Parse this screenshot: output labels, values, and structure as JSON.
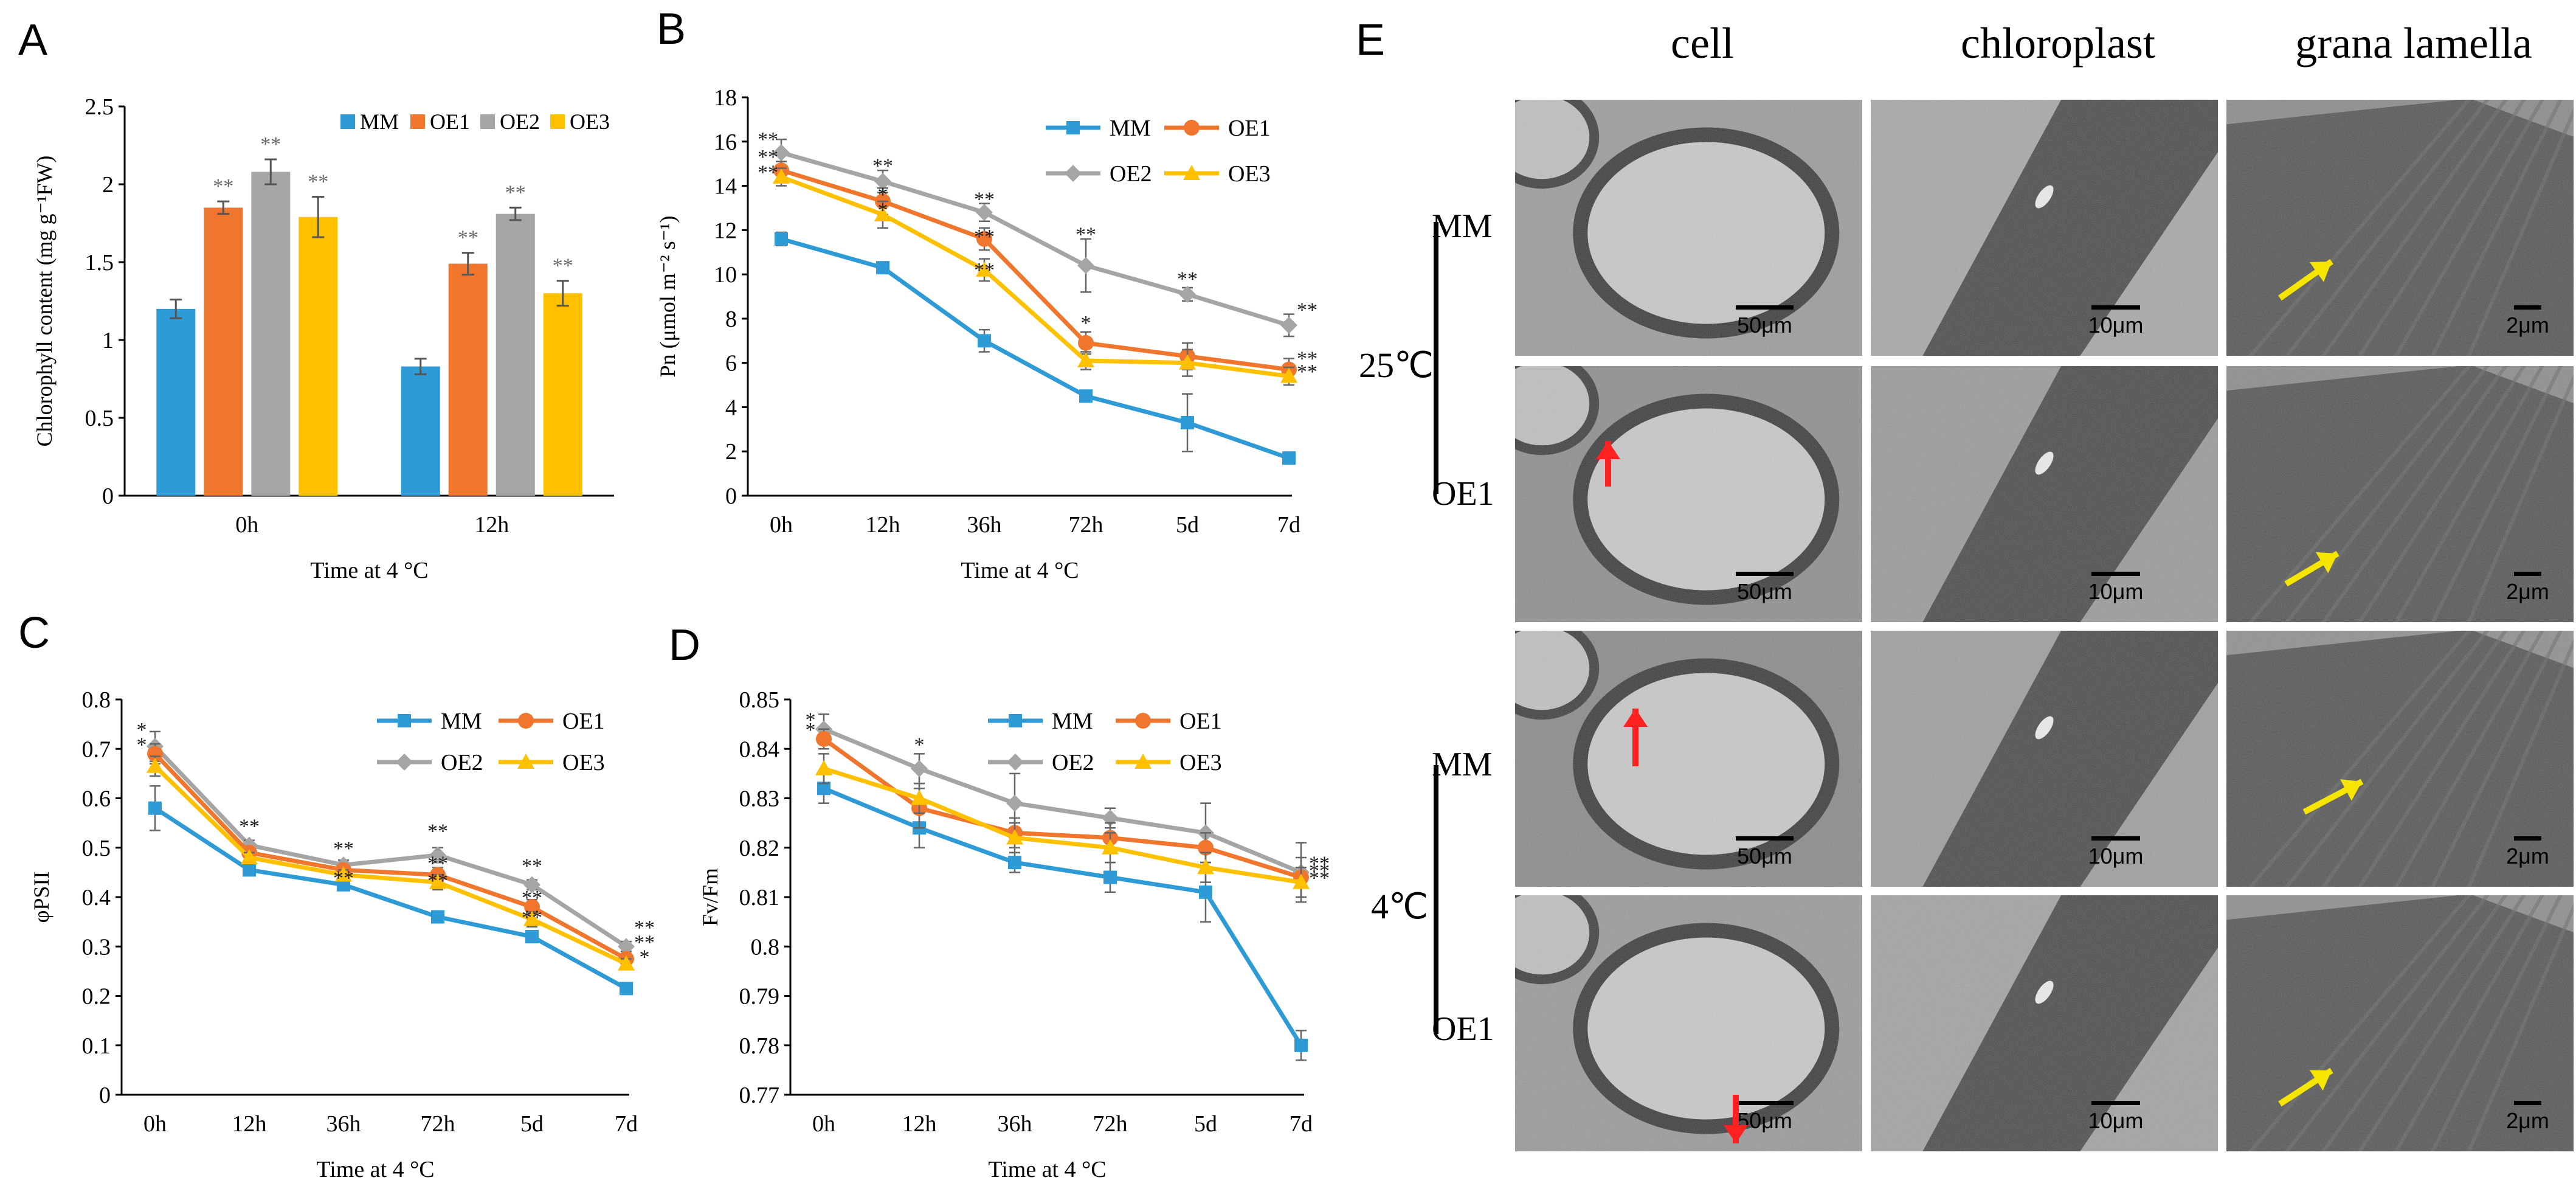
{
  "panel_labels": [
    "A",
    "B",
    "C",
    "D",
    "E"
  ],
  "colors": {
    "MM": "#2E9BD6",
    "OE1": "#F0762D",
    "OE2": "#A5A5A5",
    "OE3": "#FFC000"
  },
  "chart_data": [
    {
      "id": "A",
      "type": "bar",
      "categories": [
        "0h",
        "12h"
      ],
      "series": [
        {
          "name": "MM",
          "values": [
            1.2,
            0.83
          ],
          "errors": [
            0.06,
            0.05
          ],
          "sig": [
            "",
            ""
          ]
        },
        {
          "name": "OE1",
          "values": [
            1.85,
            1.49
          ],
          "errors": [
            0.04,
            0.07
          ],
          "sig": [
            "**",
            "**"
          ]
        },
        {
          "name": "OE2",
          "values": [
            2.08,
            1.81
          ],
          "errors": [
            0.08,
            0.04
          ],
          "sig": [
            "**",
            "**"
          ]
        },
        {
          "name": "OE3",
          "values": [
            1.79,
            1.3
          ],
          "errors": [
            0.13,
            0.08
          ],
          "sig": [
            "**",
            "**"
          ]
        }
      ],
      "ylabel": "Chlorophyll content (mg g⁻¹FW)",
      "xlabel": "Time at 4 °C",
      "ylim": [
        0,
        2.5
      ],
      "yticks": [
        "0",
        "0.5",
        "1",
        "1.5",
        "2",
        "2.5"
      ]
    },
    {
      "id": "B",
      "type": "line",
      "categories": [
        "0h",
        "12h",
        "36h",
        "72h",
        "5d",
        "7d"
      ],
      "series": [
        {
          "name": "MM",
          "values": [
            11.6,
            10.3,
            7.0,
            4.5,
            3.3,
            1.7
          ],
          "errors": [
            0.3,
            0.2,
            0.5,
            0.2,
            1.3,
            0.2
          ],
          "marker": "square"
        },
        {
          "name": "OE1",
          "values": [
            14.7,
            13.3,
            11.6,
            6.9,
            6.3,
            5.7
          ],
          "errors": [
            0.4,
            0.6,
            0.5,
            0.5,
            0.6,
            0.5
          ],
          "marker": "circle"
        },
        {
          "name": "OE2",
          "values": [
            15.5,
            14.2,
            12.8,
            10.4,
            9.1,
            7.7
          ],
          "errors": [
            0.6,
            0.5,
            0.4,
            1.2,
            0.3,
            0.5
          ],
          "marker": "diamond"
        },
        {
          "name": "OE3",
          "values": [
            14.4,
            12.7,
            10.2,
            6.1,
            6.0,
            5.4
          ],
          "errors": [
            0.4,
            0.6,
            0.5,
            0.4,
            0.6,
            0.4
          ],
          "marker": "triangle"
        }
      ],
      "sig": [
        {
          "x": 0,
          "y": 15.8,
          "text": "**"
        },
        {
          "x": 0,
          "y": 15.0,
          "text": "**"
        },
        {
          "x": 0,
          "y": 14.3,
          "text": "**"
        },
        {
          "x": 1,
          "y": 14.6,
          "text": "**"
        },
        {
          "x": 1,
          "y": 13.3,
          "text": "*"
        },
        {
          "x": 1,
          "y": 12.6,
          "text": "*"
        },
        {
          "x": 2,
          "y": 13.1,
          "text": "**"
        },
        {
          "x": 2,
          "y": 11.4,
          "text": "**"
        },
        {
          "x": 2,
          "y": 9.9,
          "text": "**"
        },
        {
          "x": 3,
          "y": 11.5,
          "text": "**"
        },
        {
          "x": 3,
          "y": 7.5,
          "text": "*"
        },
        {
          "x": 4,
          "y": 9.5,
          "text": "**"
        },
        {
          "x": 5,
          "y": 8.1,
          "text": "**"
        },
        {
          "x": 5,
          "y": 5.9,
          "text": "**"
        },
        {
          "x": 5,
          "y": 5.3,
          "text": "**"
        }
      ],
      "ylabel": "Pn (μmol m⁻² s⁻¹)",
      "xlabel": "Time at 4 °C",
      "ylim": [
        0,
        18
      ],
      "yticks": [
        "0",
        "2",
        "4",
        "6",
        "8",
        "10",
        "12",
        "14",
        "16",
        "18"
      ]
    },
    {
      "id": "C",
      "type": "line",
      "categories": [
        "0h",
        "12h",
        "36h",
        "72h",
        "5d",
        "7d"
      ],
      "series": [
        {
          "name": "MM",
          "values": [
            0.58,
            0.455,
            0.425,
            0.36,
            0.32,
            0.215
          ],
          "errors": [
            0.045,
            0.01,
            0.01,
            0.01,
            0.01,
            0.01
          ],
          "marker": "square"
        },
        {
          "name": "OE1",
          "values": [
            0.69,
            0.49,
            0.455,
            0.445,
            0.38,
            0.275
          ],
          "errors": [
            0.02,
            0.01,
            0.01,
            0.015,
            0.015,
            0.01
          ],
          "marker": "circle"
        },
        {
          "name": "OE2",
          "values": [
            0.705,
            0.505,
            0.465,
            0.485,
            0.425,
            0.3
          ],
          "errors": [
            0.03,
            0.01,
            0.01,
            0.015,
            0.01,
            0.01
          ],
          "marker": "diamond"
        },
        {
          "name": "OE3",
          "values": [
            0.665,
            0.48,
            0.445,
            0.43,
            0.355,
            0.265
          ],
          "errors": [
            0.02,
            0.01,
            0.01,
            0.015,
            0.015,
            0.01
          ],
          "marker": "triangle"
        }
      ],
      "sig": [
        {
          "x": 0,
          "y": 0.725,
          "text": "*"
        },
        {
          "x": 0,
          "y": 0.695,
          "text": "*"
        },
        {
          "x": 1,
          "y": 0.53,
          "text": "**"
        },
        {
          "x": 2,
          "y": 0.485,
          "text": "**"
        },
        {
          "x": 2,
          "y": 0.425,
          "text": "**"
        },
        {
          "x": 3,
          "y": 0.52,
          "text": "**"
        },
        {
          "x": 3,
          "y": 0.455,
          "text": "**"
        },
        {
          "x": 3,
          "y": 0.42,
          "text": "**"
        },
        {
          "x": 4,
          "y": 0.45,
          "text": "**"
        },
        {
          "x": 4,
          "y": 0.385,
          "text": "**"
        },
        {
          "x": 4,
          "y": 0.345,
          "text": "**"
        },
        {
          "x": 5,
          "y": 0.325,
          "text": "**"
        },
        {
          "x": 5,
          "y": 0.295,
          "text": "**"
        },
        {
          "x": 5,
          "y": 0.265,
          "text": "*"
        }
      ],
      "ylabel": "φPSII",
      "xlabel": "Time  at 4 °C",
      "ylim": [
        0,
        0.8
      ],
      "yticks": [
        "0",
        "0.1",
        "0.2",
        "0.3",
        "0.4",
        "0.5",
        "0.6",
        "0.7",
        "0.8"
      ]
    },
    {
      "id": "D",
      "type": "line",
      "categories": [
        "0h",
        "12h",
        "36h",
        "72h",
        "5d",
        "7d"
      ],
      "series": [
        {
          "name": "MM",
          "values": [
            0.832,
            0.824,
            0.817,
            0.814,
            0.811,
            0.78
          ],
          "errors": [
            0.003,
            0.004,
            0.002,
            0.003,
            0.006,
            0.003
          ],
          "marker": "square"
        },
        {
          "name": "OE1",
          "values": [
            0.842,
            0.828,
            0.823,
            0.822,
            0.82,
            0.814
          ],
          "errors": [
            0.002,
            0.004,
            0.003,
            0.003,
            0.003,
            0.004
          ],
          "marker": "circle"
        },
        {
          "name": "OE2",
          "values": [
            0.844,
            0.836,
            0.829,
            0.826,
            0.823,
            0.815
          ],
          "errors": [
            0.003,
            0.003,
            0.006,
            0.002,
            0.006,
            0.006
          ],
          "marker": "diamond"
        },
        {
          "name": "OE3",
          "values": [
            0.836,
            0.83,
            0.822,
            0.82,
            0.816,
            0.813
          ],
          "errors": [
            0.003,
            0.003,
            0.003,
            0.003,
            0.003,
            0.003
          ],
          "marker": "triangle"
        }
      ],
      "sig": [
        {
          "x": 0,
          "y": 0.8445,
          "text": "*"
        },
        {
          "x": 0,
          "y": 0.8425,
          "text": "*"
        },
        {
          "x": 1,
          "y": 0.8395,
          "text": "*"
        },
        {
          "x": 5,
          "y": 0.8155,
          "text": "**"
        },
        {
          "x": 5,
          "y": 0.814,
          "text": "**"
        },
        {
          "x": 5,
          "y": 0.8125,
          "text": "**"
        }
      ],
      "ylabel": "Fv/Fm",
      "xlabel": "Time at 4 °C",
      "ylim": [
        0.77,
        0.85
      ],
      "yticks": [
        "0.77",
        "0.78",
        "0.79",
        "0.8",
        "0.81",
        "0.82",
        "0.83",
        "0.84",
        "0.85"
      ]
    }
  ],
  "panel_E": {
    "columns": [
      "cell",
      "chloroplast",
      "grana lamella"
    ],
    "temperatures": [
      "25℃",
      "4℃"
    ],
    "genotypes": [
      "MM",
      "OE1"
    ],
    "scalebars": [
      [
        "50μm",
        "10μm",
        "2μm"
      ],
      [
        "50μm",
        "10μm",
        "2μm"
      ],
      [
        "50μm",
        "10μm",
        "2μm"
      ],
      [
        "50μm",
        "10μm",
        "2μm"
      ]
    ]
  }
}
